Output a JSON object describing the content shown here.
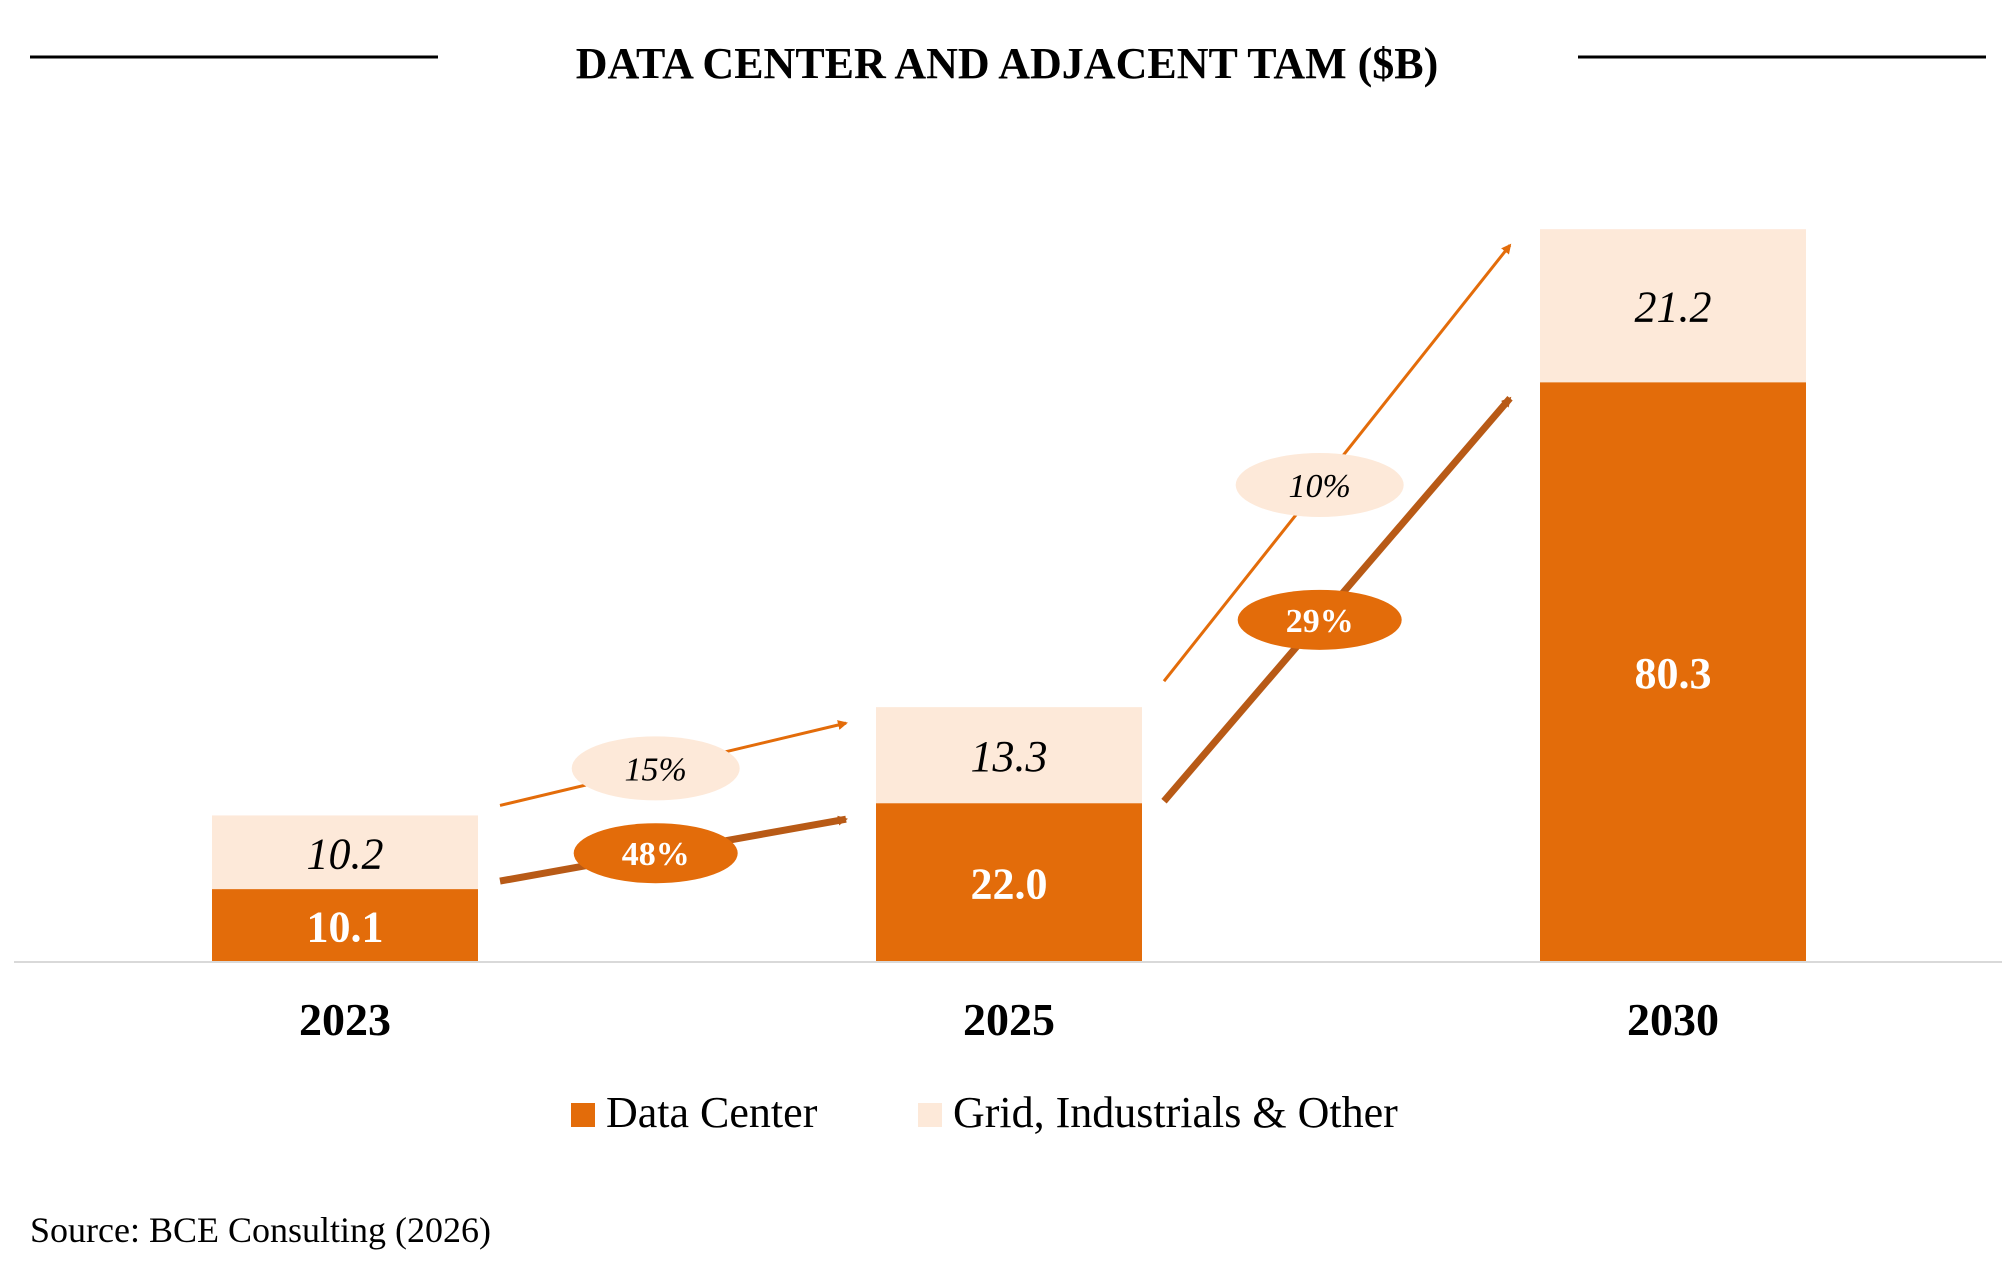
{
  "chart_data": {
    "type": "bar",
    "stacked": true,
    "title": "DATA CENTER AND ADJACENT TAM ($B)",
    "categories": [
      "2023",
      "2025",
      "2030"
    ],
    "series": [
      {
        "name": "Data Center",
        "values": [
          10.1,
          22.0,
          80.3
        ],
        "color": "#E36C0A"
      },
      {
        "name": "Grid, Industrials & Other",
        "values": [
          10.2,
          13.3,
          21.2
        ],
        "color": "#FDE9D9"
      }
    ],
    "value_labels": [
      [
        "10.1",
        "22.0",
        "80.3"
      ],
      [
        "10.2",
        "13.3",
        "21.2"
      ]
    ],
    "growth_annotations": [
      {
        "series": "Data Center",
        "from": "2023",
        "to": "2025",
        "label": "48%"
      },
      {
        "series": "Grid, Industrials & Other",
        "from": "2023",
        "to": "2025",
        "label": "15%"
      },
      {
        "series": "Data Center",
        "from": "2025",
        "to": "2030",
        "label": "29%"
      },
      {
        "series": "Grid, Industrials & Other",
        "from": "2025",
        "to": "2030",
        "label": "10%"
      }
    ],
    "ylim": [
      0,
      110
    ],
    "grid": false,
    "legend_position": "bottom",
    "source": "Source: BCE Consulting (2026)",
    "colors": {
      "data_center": "#E36C0A",
      "grid_other": "#FDE9D9",
      "arrow_dark": "#B85A16",
      "arrow_light": "#E36C0A",
      "axis": "#D9D9D9",
      "text": "#000000"
    }
  }
}
